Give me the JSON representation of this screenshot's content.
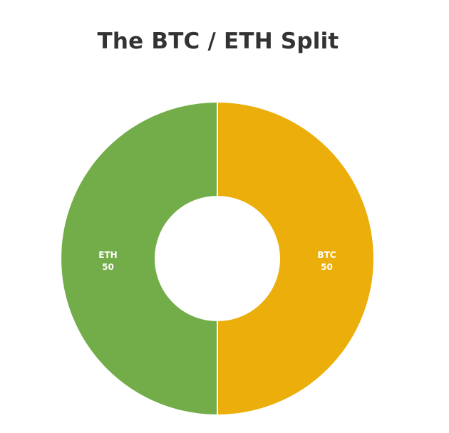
{
  "chart_data": {
    "type": "pie",
    "title": "The BTC / ETH Split",
    "donut": true,
    "categories": [
      "BTC",
      "ETH"
    ],
    "values": [
      50,
      50
    ],
    "colors": [
      "#EBAE0A",
      "#72AD4A"
    ],
    "legend": "none"
  }
}
